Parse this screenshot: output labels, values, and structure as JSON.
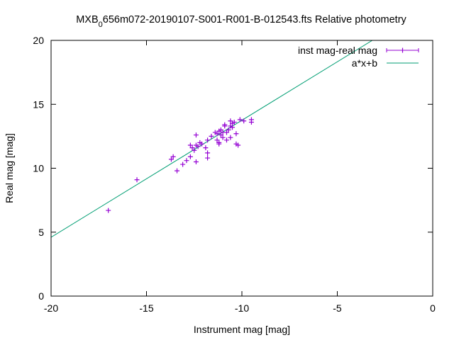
{
  "chart_data": {
    "type": "scatter",
    "title": {
      "prefix": "MXB",
      "subscript": "0",
      "suffix": "656m072-20190107-S001-R001-B-012543.fts Relative photometry"
    },
    "xlabel": "Instrument mag [mag]",
    "ylabel": "Real mag [mag]",
    "xlim": [
      -20,
      0
    ],
    "ylim": [
      0,
      20
    ],
    "x_ticks": [
      -20,
      -15,
      -10,
      -5,
      0
    ],
    "y_ticks": [
      0,
      5,
      10,
      15,
      20
    ],
    "x_tick_labels": [
      "-20",
      "-15",
      "-10",
      "-5",
      "0"
    ],
    "y_tick_labels": [
      "0",
      "5",
      "10",
      "15",
      "20"
    ],
    "grid": false,
    "legend_position": "top-right",
    "series": [
      {
        "name": "inst mag-real mag",
        "kind": "points",
        "marker": "plus",
        "color": "#9400d3",
        "points": [
          [
            -17.0,
            6.7
          ],
          [
            -15.5,
            9.1
          ],
          [
            -13.7,
            10.7
          ],
          [
            -13.6,
            10.9
          ],
          [
            -13.4,
            9.8
          ],
          [
            -13.1,
            10.3
          ],
          [
            -12.9,
            10.6
          ],
          [
            -12.7,
            10.9
          ],
          [
            -12.7,
            11.8
          ],
          [
            -12.6,
            11.6
          ],
          [
            -12.5,
            11.4
          ],
          [
            -12.4,
            11.8
          ],
          [
            -12.4,
            12.6
          ],
          [
            -12.4,
            10.5
          ],
          [
            -12.3,
            11.7
          ],
          [
            -12.2,
            12.0
          ],
          [
            -12.1,
            11.9
          ],
          [
            -11.9,
            11.6
          ],
          [
            -11.8,
            11.2
          ],
          [
            -11.8,
            10.8
          ],
          [
            -11.8,
            12.2
          ],
          [
            -11.6,
            12.5
          ],
          [
            -11.4,
            12.8
          ],
          [
            -11.3,
            12.7
          ],
          [
            -11.3,
            12.2
          ],
          [
            -11.2,
            12.9
          ],
          [
            -11.2,
            12.0
          ],
          [
            -11.2,
            11.9
          ],
          [
            -11.1,
            13.0
          ],
          [
            -11.1,
            12.6
          ],
          [
            -11.0,
            12.8
          ],
          [
            -11.0,
            12.4
          ],
          [
            -10.9,
            13.3
          ],
          [
            -10.9,
            13.4
          ],
          [
            -10.8,
            12.8
          ],
          [
            -10.8,
            12.2
          ],
          [
            -10.7,
            13.0
          ],
          [
            -10.6,
            13.3
          ],
          [
            -10.6,
            13.7
          ],
          [
            -10.6,
            12.4
          ],
          [
            -10.5,
            13.5
          ],
          [
            -10.5,
            13.2
          ],
          [
            -10.4,
            13.6
          ],
          [
            -10.3,
            12.7
          ],
          [
            -10.3,
            11.9
          ],
          [
            -10.2,
            11.8
          ],
          [
            -10.1,
            13.8
          ],
          [
            -9.9,
            13.7
          ],
          [
            -9.5,
            13.8
          ],
          [
            -9.5,
            13.6
          ]
        ]
      },
      {
        "name": "a*x+b",
        "kind": "line",
        "color": "#009e73",
        "slope": 0.915,
        "intercept": 22.9
      }
    ]
  }
}
